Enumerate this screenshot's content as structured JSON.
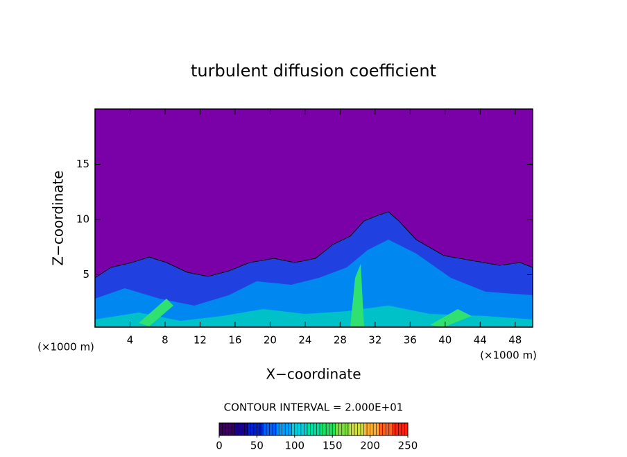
{
  "chart_data": {
    "type": "contour",
    "title": "turbulent diffusion coefficient",
    "x_label": "X−coordinate",
    "y_label": "Z−coordinate",
    "x_unit": "(×1000 m)",
    "y_unit": "(×1000 m)",
    "xlim": [
      0,
      50
    ],
    "xticks": [
      4,
      8,
      12,
      16,
      20,
      24,
      28,
      32,
      36,
      40,
      44,
      48
    ],
    "ylim": [
      0.25,
      20
    ],
    "yticks": [
      5,
      10,
      15
    ],
    "background_color": "#7a00a8",
    "colorbar": {
      "title": "CONTOUR INTERVAL = 2.000E+01",
      "lim": [
        0,
        250
      ],
      "ticks": [
        0,
        50,
        100,
        150,
        200,
        250
      ],
      "colors": [
        "#3a0060",
        "#1a0090",
        "#0020d0",
        "#0060ff",
        "#00a0ff",
        "#00d0e0",
        "#00e0a0",
        "#20e060",
        "#80e040",
        "#d0e040",
        "#ffb030",
        "#ff6020",
        "#ff2010"
      ]
    }
  }
}
